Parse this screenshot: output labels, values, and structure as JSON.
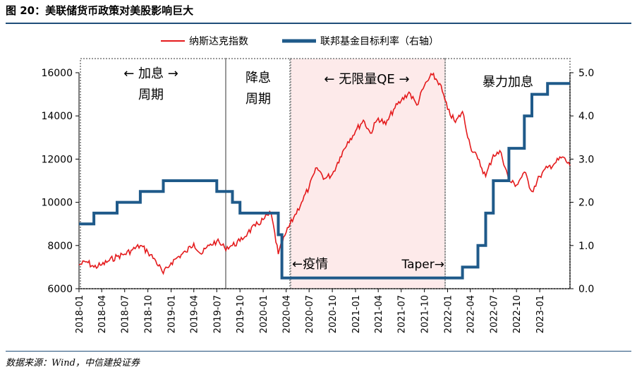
{
  "title": "图 20：美联储货币政策对美股影响巨大",
  "source": "数据来源：Wind，中信建投证券",
  "colors": {
    "nasdaq": "#e41a1c",
    "ffr": "#1f5a8a",
    "qe_shade": "#fdeaea",
    "box": "#999999"
  },
  "chart_data": {
    "type": "line",
    "legend": {
      "placement": "top",
      "entries": [
        "纳斯达克指数",
        "联邦基金目标利率（右轴）"
      ]
    },
    "x_ticks": [
      "2018-01",
      "2018-04",
      "2018-07",
      "2018-10",
      "2019-01",
      "2019-04",
      "2019-07",
      "2019-10",
      "2020-01",
      "2020-04",
      "2020-07",
      "2020-10",
      "2021-01",
      "2021-04",
      "2021-07",
      "2021-10",
      "2022-01",
      "2022-04",
      "2022-07",
      "2022-10",
      "2023-01"
    ],
    "y_left": {
      "min": 6000,
      "max": 16000,
      "ticks": [
        "6000",
        "8000",
        "10000",
        "12000",
        "14000",
        "16000"
      ]
    },
    "y_right": {
      "min": 0,
      "max": 5,
      "ticks": [
        "0.0",
        "1.0",
        "2.0",
        "3.0",
        "4.0",
        "5.0"
      ]
    },
    "series": [
      {
        "name": "纳斯达克指数",
        "axis": "left",
        "points": [
          [
            "2018-01",
            7100
          ],
          [
            "2018-02",
            7250
          ],
          [
            "2018-03",
            7000
          ],
          [
            "2018-04",
            7100
          ],
          [
            "2018-05",
            7300
          ],
          [
            "2018-06",
            7500
          ],
          [
            "2018-07",
            7600
          ],
          [
            "2018-08",
            7800
          ],
          [
            "2018-09",
            8000
          ],
          [
            "2018-10",
            7700
          ],
          [
            "2018-11",
            7300
          ],
          [
            "2018-12",
            6700
          ],
          [
            "2019-01",
            7200
          ],
          [
            "2019-02",
            7500
          ],
          [
            "2019-03",
            7700
          ],
          [
            "2019-04",
            8100
          ],
          [
            "2019-05",
            7600
          ],
          [
            "2019-06",
            8000
          ],
          [
            "2019-07",
            8200
          ],
          [
            "2019-08",
            7900
          ],
          [
            "2019-09",
            8000
          ],
          [
            "2019-10",
            8200
          ],
          [
            "2019-11",
            8600
          ],
          [
            "2019-12",
            8900
          ],
          [
            "2020-01",
            9200
          ],
          [
            "2020-02",
            9500
          ],
          [
            "2020-03",
            7600
          ],
          [
            "2020-04",
            8600
          ],
          [
            "2020-05",
            9300
          ],
          [
            "2020-06",
            10000
          ],
          [
            "2020-07",
            10700
          ],
          [
            "2020-08",
            11600
          ],
          [
            "2020-09",
            11100
          ],
          [
            "2020-10",
            11300
          ],
          [
            "2020-11",
            12100
          ],
          [
            "2020-12",
            12800
          ],
          [
            "2021-01",
            13300
          ],
          [
            "2021-02",
            13800
          ],
          [
            "2021-03",
            13200
          ],
          [
            "2021-04",
            13900
          ],
          [
            "2021-05",
            13600
          ],
          [
            "2021-06",
            14300
          ],
          [
            "2021-07",
            14700
          ],
          [
            "2021-08",
            15100
          ],
          [
            "2021-09",
            14500
          ],
          [
            "2021-10",
            15400
          ],
          [
            "2021-11",
            15900
          ],
          [
            "2021-12",
            15500
          ],
          [
            "2022-01",
            14300
          ],
          [
            "2022-02",
            13700
          ],
          [
            "2022-03",
            14200
          ],
          [
            "2022-04",
            12600
          ],
          [
            "2022-05",
            12000
          ],
          [
            "2022-06",
            11200
          ],
          [
            "2022-07",
            12200
          ],
          [
            "2022-08",
            12300
          ],
          [
            "2022-09",
            11000
          ],
          [
            "2022-10",
            10800
          ],
          [
            "2022-11",
            11400
          ],
          [
            "2022-12",
            10500
          ],
          [
            "2023-01",
            11200
          ],
          [
            "2023-02",
            11600
          ],
          [
            "2023-03",
            11800
          ],
          [
            "2023-04",
            12100
          ],
          [
            "2023-05",
            11700
          ]
        ]
      },
      {
        "name": "联邦基金目标利率（右轴）",
        "axis": "right",
        "points": [
          [
            "2018-01",
            1.5
          ],
          [
            "2018-03",
            1.75
          ],
          [
            "2018-06",
            2.0
          ],
          [
            "2018-09",
            2.25
          ],
          [
            "2018-12",
            2.5
          ],
          [
            "2019-07",
            2.25
          ],
          [
            "2019-09",
            2.0
          ],
          [
            "2019-10",
            1.75
          ],
          [
            "2020-03",
            1.25
          ],
          [
            "2020-03-15",
            0.25
          ],
          [
            "2022-03",
            0.5
          ],
          [
            "2022-05",
            1.0
          ],
          [
            "2022-06",
            1.75
          ],
          [
            "2022-07",
            2.5
          ],
          [
            "2022-09",
            3.25
          ],
          [
            "2022-11",
            4.0
          ],
          [
            "2022-12",
            4.5
          ],
          [
            "2023-02",
            4.75
          ]
        ]
      }
    ],
    "annotations": [
      "← 加息 →",
      "周期",
      "降息",
      "周期",
      "← 无限量QE →",
      "暴力加息",
      "←疫情",
      "Taper→"
    ]
  }
}
